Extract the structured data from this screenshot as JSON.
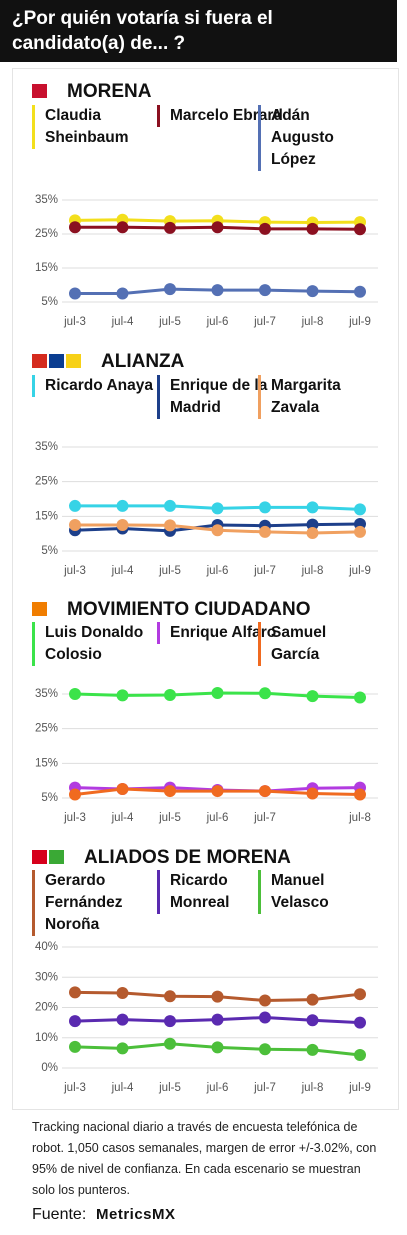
{
  "title": "¿Por quién votaría si fuera el candidato(a) de... ?",
  "chart_data": [
    {
      "type": "line",
      "title": "MORENA",
      "categories": [
        "jul-3",
        "jul-4",
        "jul-5",
        "jul-6",
        "jul-7",
        "jul-8",
        "jul-9"
      ],
      "ylim": [
        5,
        35
      ],
      "yticks": [
        {
          "value": 35,
          "label": "35%"
        },
        {
          "value": 25,
          "label": "25%"
        },
        {
          "value": 15,
          "label": "15%"
        },
        {
          "value": 5,
          "label": "5%"
        }
      ],
      "grid": true,
      "series": [
        {
          "name": "Claudia Sheinbaum",
          "color": "#f3df1c",
          "values": [
            29,
            29.2,
            28.8,
            28.9,
            28.5,
            28.4,
            28.5
          ]
        },
        {
          "name": "Marcelo Ebrard",
          "color": "#8b1020",
          "values": [
            27,
            27,
            26.8,
            27,
            26.5,
            26.5,
            26.4
          ]
        },
        {
          "name": "Adán Augusto López",
          "color": "#5470b4",
          "values": [
            7.5,
            7.5,
            8.8,
            8.5,
            8.5,
            8.2,
            8
          ]
        }
      ]
    },
    {
      "type": "line",
      "title": "ALIANZA",
      "categories": [
        "jul-3",
        "jul-4",
        "jul-5",
        "jul-6",
        "jul-7",
        "jul-8",
        "jul-9"
      ],
      "ylim": [
        5,
        35
      ],
      "yticks": [
        {
          "value": 35,
          "label": "35%"
        },
        {
          "value": 25,
          "label": "25%"
        },
        {
          "value": 15,
          "label": "15%"
        },
        {
          "value": 5,
          "label": "5%"
        }
      ],
      "grid": true,
      "series": [
        {
          "name": "Ricardo Anaya",
          "color": "#36d3e6",
          "values": [
            18,
            18,
            18,
            17.3,
            17.6,
            17.6,
            17
          ]
        },
        {
          "name": "Enrique de la Madrid",
          "color": "#1d3f8a",
          "values": [
            11,
            11.5,
            10.8,
            12.5,
            12.3,
            12.6,
            12.8
          ]
        },
        {
          "name": "Margarita Zavala",
          "color": "#f0a060",
          "values": [
            12.5,
            12.5,
            12.4,
            11,
            10.5,
            10.2,
            10.5
          ]
        }
      ]
    },
    {
      "type": "line",
      "title": "MOVIMIENTO CIUDADANO",
      "categories": [
        "jul-3",
        "jul-4",
        "jul-5",
        "jul-6",
        "jul-7",
        null,
        "jul-8"
      ],
      "ylim": [
        5,
        35
      ],
      "yticks": [
        {
          "value": 35,
          "label": "35%"
        },
        {
          "value": 25,
          "label": "25%"
        },
        {
          "value": 15,
          "label": "15%"
        },
        {
          "value": 5,
          "label": "5%"
        }
      ],
      "grid": true,
      "series": [
        {
          "name": "Luis Donaldo Colosio",
          "color": "#3be34a",
          "values": [
            35,
            34.6,
            34.7,
            35.3,
            35.2,
            34.4,
            34
          ]
        },
        {
          "name": "Enrique Alfaro",
          "color": "#b23be0",
          "values": [
            8,
            7.6,
            8,
            7.3,
            7,
            7.8,
            8
          ]
        },
        {
          "name": "Samuel García",
          "color": "#f06a20",
          "values": [
            6,
            7.6,
            7,
            7,
            7,
            6.3,
            6
          ]
        }
      ]
    },
    {
      "type": "line",
      "title": "ALIADOS DE MORENA",
      "categories": [
        "jul-3",
        "jul-4",
        "jul-5",
        "jul-6",
        "jul-7",
        "jul-8",
        "jul-9"
      ],
      "ylim": [
        0,
        40
      ],
      "yticks": [
        {
          "value": 40,
          "label": "40%"
        },
        {
          "value": 30,
          "label": "30%"
        },
        {
          "value": 20,
          "label": "20%"
        },
        {
          "value": 10,
          "label": "10%"
        },
        {
          "value": 0,
          "label": "0%"
        }
      ],
      "grid": true,
      "series": [
        {
          "name": "Gerardo Fernández Noroña",
          "color": "#b55a2e",
          "values": [
            25,
            24.8,
            23.7,
            23.6,
            22.3,
            22.6,
            24.4
          ]
        },
        {
          "name": "Ricardo Monreal",
          "color": "#5a2ab0",
          "values": [
            15.5,
            16,
            15.5,
            16,
            16.7,
            15.8,
            15
          ]
        },
        {
          "name": "Manuel Velasco",
          "color": "#4cbf3a",
          "values": [
            7,
            6.5,
            8,
            6.8,
            6.2,
            6,
            4.3
          ]
        }
      ]
    }
  ],
  "note": "Tracking nacional diario a través de encuesta telefónica de robot. 1,050 casos semanales, margen de error +/-3.02%, con 95% de nivel de confianza. En cada escenario se muestran solo los punteros.",
  "source_label": "Fuente:",
  "source_logo": "MetricsMX"
}
